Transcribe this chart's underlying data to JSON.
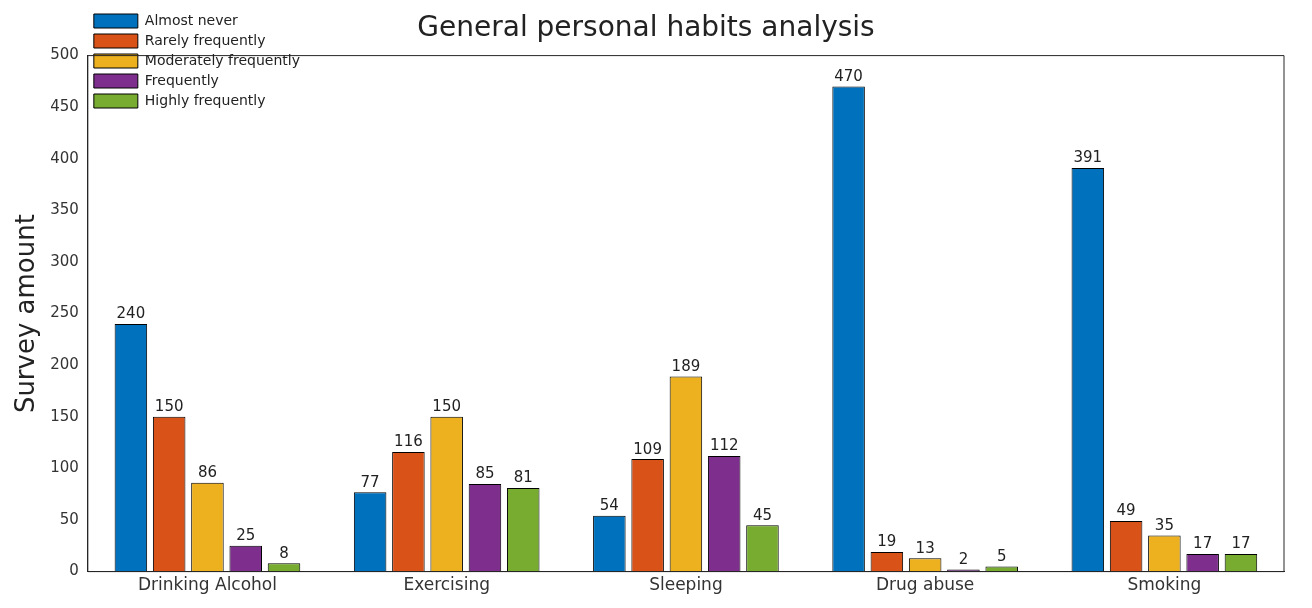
{
  "chart_data": {
    "type": "bar",
    "title": "General personal habits analysis",
    "ylabel": "Survey amount",
    "categories": [
      "Drinking Alcohol",
      "Exercising",
      "Sleeping",
      "Drug abuse",
      "Smoking"
    ],
    "series": [
      {
        "name": "Almost never",
        "color": "#0072bd",
        "values": [
          240,
          77,
          54,
          470,
          391
        ]
      },
      {
        "name": "Rarely frequently",
        "color": "#d95319",
        "values": [
          150,
          116,
          109,
          19,
          49
        ]
      },
      {
        "name": "Moderately frequently",
        "color": "#edb120",
        "values": [
          86,
          150,
          189,
          13,
          35
        ]
      },
      {
        "name": "Frequently",
        "color": "#7e2f8e",
        "values": [
          25,
          85,
          112,
          2,
          17
        ]
      },
      {
        "name": "Highly frequently",
        "color": "#77ac30",
        "values": [
          8,
          81,
          45,
          5,
          17
        ]
      }
    ],
    "ylim": [
      0,
      500
    ],
    "yticks": [
      0,
      50,
      100,
      150,
      200,
      250,
      300,
      350,
      400,
      450,
      500
    ],
    "data_labels": true,
    "legend": "top left",
    "grid": false
  }
}
